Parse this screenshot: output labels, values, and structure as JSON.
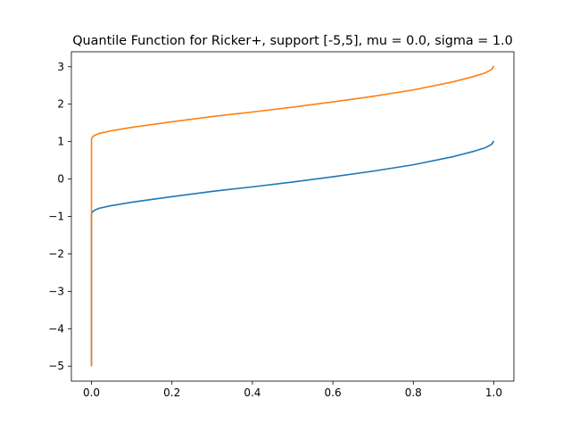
{
  "chart_data": {
    "type": "line",
    "title": "Quantile Function for Ricker+, support [-5,5], mu = 0.0, sigma = 1.0",
    "xlabel": "",
    "ylabel": "",
    "xlim": [
      -0.05,
      1.05
    ],
    "ylim": [
      -5.4,
      3.4
    ],
    "xticks": [
      0.0,
      0.2,
      0.4,
      0.6,
      0.8,
      1.0
    ],
    "xtick_labels": [
      "0.0",
      "0.2",
      "0.4",
      "0.6",
      "0.8",
      "1.0"
    ],
    "yticks": [
      -5,
      -4,
      -3,
      -2,
      -1,
      0,
      1,
      2,
      3
    ],
    "ytick_labels": [
      "−5",
      "−4",
      "−3",
      "−2",
      "−1",
      "0",
      "1",
      "2",
      "3"
    ],
    "grid": false,
    "series": [
      {
        "color": "#1f77b4",
        "x": [
          0.0,
          0.0,
          0.001,
          0.003,
          0.01,
          0.02,
          0.05,
          0.1,
          0.2,
          0.3,
          0.4,
          0.5,
          0.6,
          0.7,
          0.8,
          0.9,
          0.95,
          0.98,
          0.995,
          1.0
        ],
        "y": [
          -5.0,
          -0.95,
          -0.9,
          -0.87,
          -0.82,
          -0.78,
          -0.71,
          -0.62,
          -0.47,
          -0.33,
          -0.21,
          -0.08,
          0.06,
          0.21,
          0.38,
          0.6,
          0.74,
          0.84,
          0.93,
          1.02
        ]
      },
      {
        "color": "#ff7f0e",
        "x": [
          0.0,
          0.0,
          0.001,
          0.003,
          0.01,
          0.02,
          0.05,
          0.1,
          0.2,
          0.3,
          0.4,
          0.5,
          0.6,
          0.7,
          0.8,
          0.9,
          0.95,
          0.98,
          0.995,
          1.0
        ],
        "y": [
          -5.0,
          1.05,
          1.1,
          1.13,
          1.18,
          1.22,
          1.29,
          1.38,
          1.53,
          1.67,
          1.79,
          1.92,
          2.06,
          2.21,
          2.38,
          2.6,
          2.74,
          2.84,
          2.93,
          3.02
        ]
      }
    ]
  }
}
